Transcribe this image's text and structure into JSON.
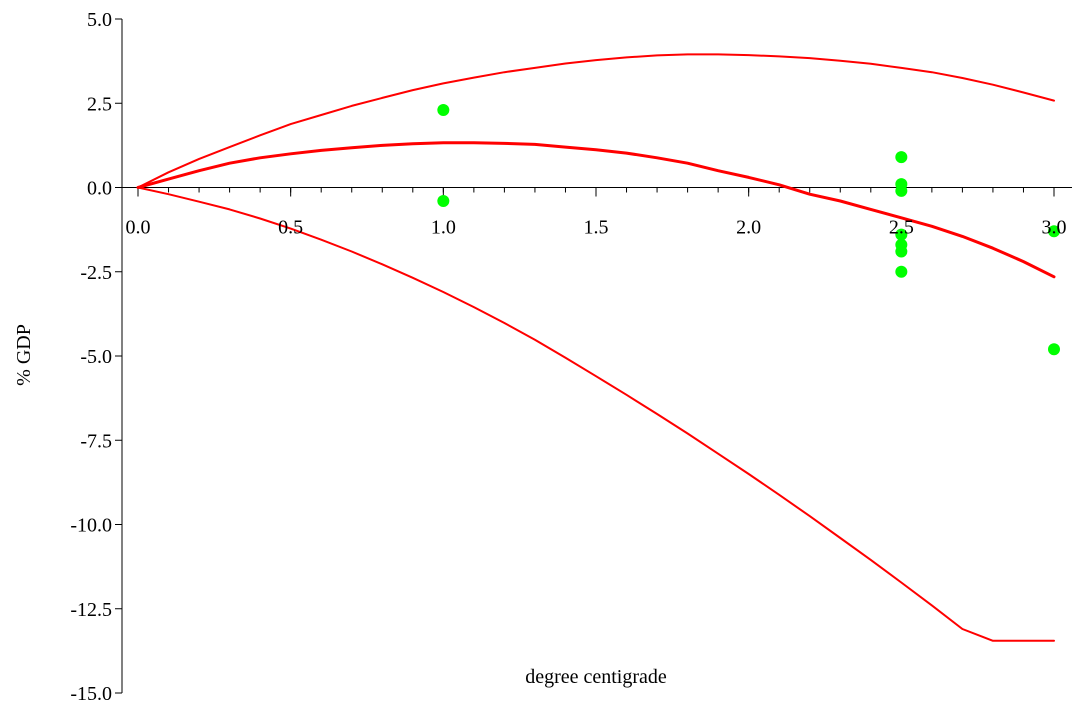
{
  "chart_data": {
    "type": "line",
    "title": "",
    "xlabel": "degree centigrade",
    "ylabel": "% GDP",
    "xlim": [
      0,
      3
    ],
    "ylim": [
      -15,
      5
    ],
    "x_ticks": [
      0.0,
      0.5,
      1.0,
      1.5,
      2.0,
      2.5,
      3.0
    ],
    "x_tick_labels": [
      "0.0",
      "0.5",
      "1.0",
      "1.5",
      "2.0",
      "2.5",
      "3.0"
    ],
    "y_ticks": [
      5.0,
      2.5,
      0.0,
      -2.5,
      -5.0,
      -7.5,
      -10.0,
      -12.5,
      -15.0
    ],
    "y_tick_labels": [
      "5.0",
      "2.5",
      "0.0",
      "-2.5",
      "-5.0",
      "-7.5",
      "-10.0",
      "-12.5",
      "-15.0"
    ],
    "grid": false,
    "legend": "none",
    "x": [
      0.0,
      0.1,
      0.2,
      0.3,
      0.4,
      0.5,
      0.6,
      0.7,
      0.8,
      0.9,
      1.0,
      1.1,
      1.2,
      1.3,
      1.4,
      1.5,
      1.6,
      1.7,
      1.8,
      1.9,
      2.0,
      2.1,
      2.2,
      2.3,
      2.4,
      2.5,
      2.6,
      2.7,
      2.8,
      2.9,
      3.0
    ],
    "series": [
      {
        "role": "upper-bound",
        "color": "#ff0000",
        "width": 2,
        "values": [
          0.0,
          0.45,
          0.85,
          1.2,
          1.55,
          1.88,
          2.15,
          2.42,
          2.66,
          2.89,
          3.09,
          3.26,
          3.42,
          3.55,
          3.68,
          3.78,
          3.86,
          3.92,
          3.95,
          3.95,
          3.93,
          3.89,
          3.84,
          3.76,
          3.67,
          3.55,
          3.42,
          3.25,
          3.05,
          2.82,
          2.58
        ]
      },
      {
        "role": "central-estimate",
        "color": "#ff0000",
        "width": 3,
        "values": [
          0.0,
          0.25,
          0.5,
          0.72,
          0.88,
          1.0,
          1.1,
          1.18,
          1.25,
          1.3,
          1.33,
          1.33,
          1.31,
          1.28,
          1.2,
          1.12,
          1.02,
          0.88,
          0.72,
          0.5,
          0.3,
          0.08,
          -0.2,
          -0.4,
          -0.65,
          -0.9,
          -1.15,
          -1.45,
          -1.8,
          -2.2,
          -2.65
        ]
      },
      {
        "role": "lower-bound",
        "color": "#ff0000",
        "width": 2,
        "values": [
          0.0,
          -0.2,
          -0.42,
          -0.65,
          -0.92,
          -1.22,
          -1.55,
          -1.9,
          -2.28,
          -2.68,
          -3.1,
          -3.55,
          -4.02,
          -4.52,
          -5.05,
          -5.6,
          -6.15,
          -6.72,
          -7.3,
          -7.9,
          -8.5,
          -9.12,
          -9.75,
          -10.4,
          -11.05,
          -11.72,
          -12.4,
          -13.1,
          -13.45,
          -13.45,
          -13.45
        ]
      }
    ],
    "scatter": {
      "color": "#00ff00",
      "points": [
        {
          "x": 1.0,
          "y": 2.3
        },
        {
          "x": 1.0,
          "y": -0.4
        },
        {
          "x": 2.5,
          "y": 0.9
        },
        {
          "x": 2.5,
          "y": 0.1
        },
        {
          "x": 2.5,
          "y": -0.1
        },
        {
          "x": 2.5,
          "y": -1.4
        },
        {
          "x": 2.5,
          "y": -1.7
        },
        {
          "x": 2.5,
          "y": -1.9
        },
        {
          "x": 2.5,
          "y": -2.5
        },
        {
          "x": 3.0,
          "y": -1.3
        },
        {
          "x": 3.0,
          "y": -4.8
        }
      ]
    }
  }
}
